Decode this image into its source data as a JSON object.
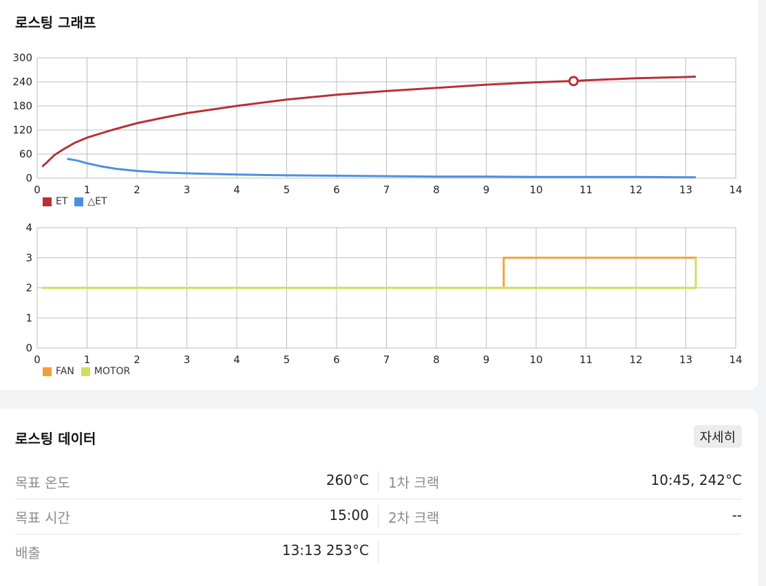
{
  "graph_section": {
    "title": "로스팅 그래프"
  },
  "data_section": {
    "title": "로스팅 데이터",
    "detail_button": "자세히",
    "rows": [
      {
        "left_label": "목표 온도",
        "left_value": "260°C",
        "right_label": "1차 크랙",
        "right_value": "10:45, 242°C"
      },
      {
        "left_label": "목표 시간",
        "left_value": "15:00",
        "right_label": "2차 크랙",
        "right_value": "--"
      },
      {
        "left_label": "배출",
        "left_value": "13:13 253°C",
        "right_label": "",
        "right_value": ""
      }
    ]
  },
  "colors": {
    "et": "#b83035",
    "delta_et": "#4a90e2",
    "fan": "#eea23a",
    "motor": "#d1df5d",
    "grid": "#bdbdbd"
  },
  "chart_data": [
    {
      "type": "line",
      "title": "",
      "xlabel": "",
      "ylabel": "",
      "xlim": [
        0,
        14
      ],
      "ylim": [
        0,
        300
      ],
      "x_ticks": [
        0,
        1,
        2,
        3,
        4,
        5,
        6,
        7,
        8,
        9,
        10,
        11,
        12,
        13,
        14
      ],
      "y_ticks": [
        0,
        60,
        120,
        180,
        240,
        300
      ],
      "grid": true,
      "legend_position": "bottom-left",
      "series": [
        {
          "name": "ET",
          "color": "#b83035",
          "x": [
            0.1,
            0.2,
            0.35,
            0.5,
            0.75,
            1,
            1.5,
            2,
            2.5,
            3,
            4,
            5,
            6,
            7,
            8,
            9,
            10,
            10.75,
            11,
            12,
            13,
            13.2
          ],
          "y": [
            29,
            40,
            58,
            70,
            88,
            101,
            120,
            137,
            150,
            162,
            180,
            196,
            208,
            217,
            225,
            233,
            239,
            242,
            244,
            249,
            252,
            253
          ]
        },
        {
          "name": "△ET",
          "color": "#4a90e2",
          "x": [
            0.6,
            0.8,
            1,
            1.3,
            1.6,
            2,
            2.5,
            3,
            4,
            5,
            6,
            7,
            8,
            9,
            10,
            11,
            12,
            13,
            13.2
          ],
          "y": [
            48,
            44,
            37,
            29,
            23,
            18,
            14,
            12,
            9,
            7,
            6,
            5,
            4,
            4,
            3,
            3,
            3,
            2,
            2
          ]
        }
      ],
      "annotations": [
        {
          "label": "1차 크랙 marker",
          "x": 10.75,
          "y": 242
        }
      ]
    },
    {
      "type": "line",
      "title": "",
      "xlabel": "",
      "ylabel": "",
      "xlim": [
        0,
        14
      ],
      "ylim": [
        0,
        4
      ],
      "x_ticks": [
        0,
        1,
        2,
        3,
        4,
        5,
        6,
        7,
        8,
        9,
        10,
        11,
        12,
        13,
        14
      ],
      "y_ticks": [
        0,
        1,
        2,
        3,
        4
      ],
      "grid": true,
      "legend_position": "bottom-left",
      "series": [
        {
          "name": "FAN",
          "color": "#eea23a",
          "step": true,
          "x": [
            0.1,
            9.35,
            9.35,
            13.2,
            13.2
          ],
          "y": [
            2,
            2,
            3,
            3,
            2
          ]
        },
        {
          "name": "MOTOR",
          "color": "#d1df5d",
          "step": true,
          "x": [
            0.1,
            13.2,
            13.2
          ],
          "y": [
            2,
            2,
            3
          ]
        }
      ]
    }
  ]
}
